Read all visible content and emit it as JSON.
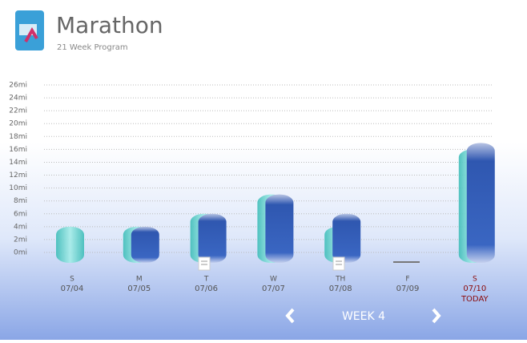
{
  "header": {
    "title": "Marathon",
    "subtitle": "21 Week Program"
  },
  "chart_data": {
    "type": "bar",
    "categories": [
      "07/04",
      "07/05",
      "07/06",
      "07/07",
      "07/08",
      "07/09",
      "07/10"
    ],
    "weekdays": [
      "S",
      "M",
      "T",
      "W",
      "TH",
      "F",
      "S"
    ],
    "today_label": "TODAY",
    "series": [
      {
        "color": "#4fcfca",
        "values": [
          4,
          4,
          6,
          9,
          4,
          0,
          16
        ]
      },
      {
        "color": "#2f57b0",
        "values": [
          null,
          4,
          6,
          9,
          6,
          0,
          17
        ]
      }
    ],
    "ylim": [
      0,
      26
    ],
    "yticks": [
      {
        "value": 0,
        "label": "0mi"
      },
      {
        "value": 2,
        "label": "2mi"
      },
      {
        "value": 4,
        "label": "4mi"
      },
      {
        "value": 6,
        "label": "6mi"
      },
      {
        "value": 8,
        "label": "8mi"
      },
      {
        "value": 10,
        "label": "10mi"
      },
      {
        "value": 12,
        "label": "12mi"
      },
      {
        "value": 14,
        "label": "14mi"
      },
      {
        "value": 16,
        "label": "16mi"
      },
      {
        "value": 18,
        "label": "18mi"
      },
      {
        "value": 20,
        "label": "20mi"
      },
      {
        "value": 22,
        "label": "22mi"
      },
      {
        "value": 24,
        "label": "24mi"
      },
      {
        "value": 26,
        "label": "26mi"
      }
    ],
    "grid": true
  },
  "nav": {
    "week": "WEEK 4"
  }
}
